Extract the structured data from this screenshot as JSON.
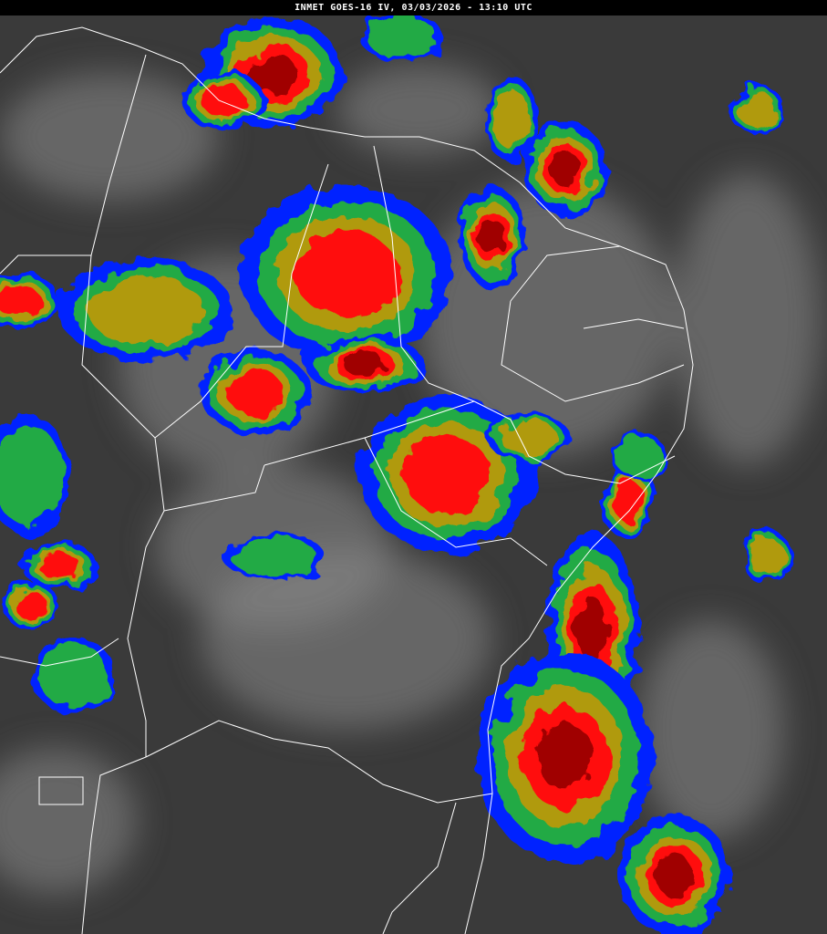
{
  "header": {
    "title": "INMET GOES-16 IV, 03/03/2026 - 13:10 UTC"
  },
  "colors": {
    "background_gray": "#3a3a3a",
    "cloud_gray": "#8a8a8a",
    "blue": "#0022ff",
    "green": "#22aa44",
    "dark_green": "#1e7a3a",
    "olive": "#b09a10",
    "red": "#ff1010",
    "dark_red": "#a00000",
    "boundaries": "#ffffff"
  }
}
